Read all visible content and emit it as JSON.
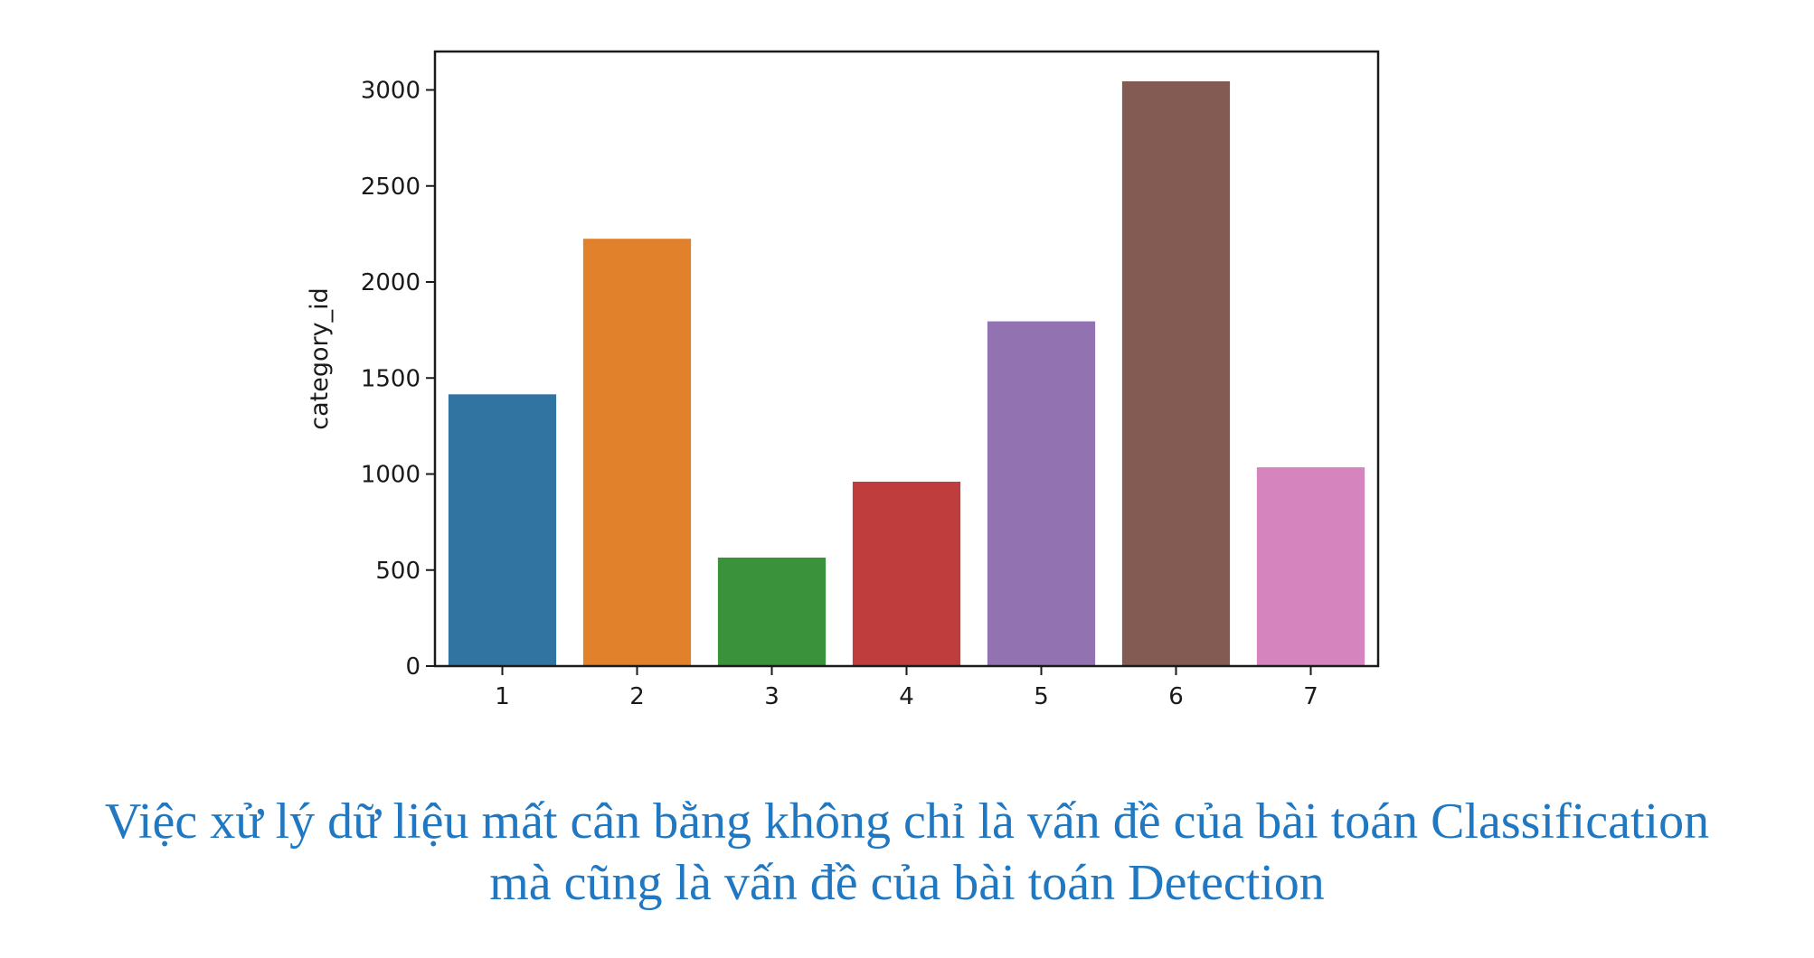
{
  "chart_data": {
    "type": "bar",
    "categories": [
      "1",
      "2",
      "3",
      "4",
      "5",
      "6",
      "7"
    ],
    "values": [
      1415,
      2225,
      565,
      960,
      1795,
      3045,
      1035
    ],
    "colors": [
      "#3274a1",
      "#e1812c",
      "#3a923a",
      "#c03d3e",
      "#9372b2",
      "#845b53",
      "#d684bd"
    ],
    "xlabel": "",
    "ylabel": "category_id",
    "ylim": [
      0,
      3200
    ],
    "yticks": [
      0,
      500,
      1000,
      1500,
      2000,
      2500,
      3000
    ],
    "grid": false
  },
  "caption": {
    "line1": "Việc xử lý dữ liệu mất cân bằng không chỉ là vấn đề của bài toán Classification",
    "line2": "mà cũng là vấn đề của bài toán Detection"
  }
}
